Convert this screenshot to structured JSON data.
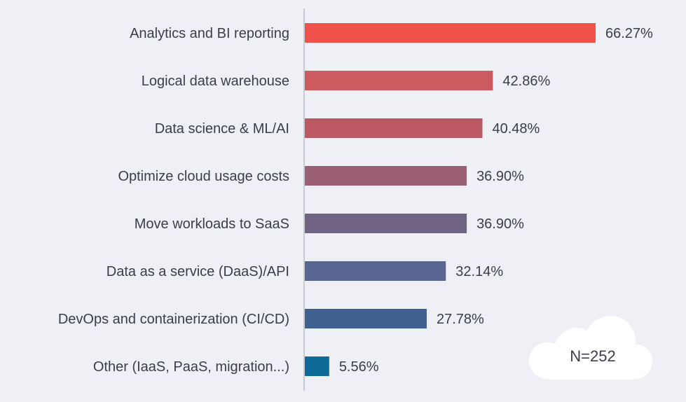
{
  "chart_data": {
    "type": "bar",
    "orientation": "horizontal",
    "categories": [
      "Analytics and BI reporting",
      "Logical data warehouse",
      "Data science & ML/AI",
      "Optimize cloud usage costs",
      "Move workloads to SaaS",
      "Data as a service (DaaS)/API",
      "DevOps and containerization (CI/CD)",
      "Other (IaaS, PaaS, migration...)"
    ],
    "values": [
      66.27,
      42.86,
      40.48,
      36.9,
      36.9,
      32.14,
      27.78,
      5.56
    ],
    "value_labels": [
      "66.27%",
      "42.86%",
      "40.48%",
      "36.90%",
      "36.90%",
      "32.14%",
      "27.78%",
      "5.56%"
    ],
    "colors": [
      "#f1514b",
      "#cc5a5f",
      "#bc5862",
      "#9a5f72",
      "#6f6582",
      "#586590",
      "#3f6190",
      "#0e6a98"
    ],
    "xlim": [
      0,
      70
    ],
    "axis_color": "#c8cad2",
    "grid": false,
    "legend": "none"
  },
  "badge": {
    "icon": "cloud-icon",
    "text": "N=252",
    "color": "#ffffff"
  }
}
